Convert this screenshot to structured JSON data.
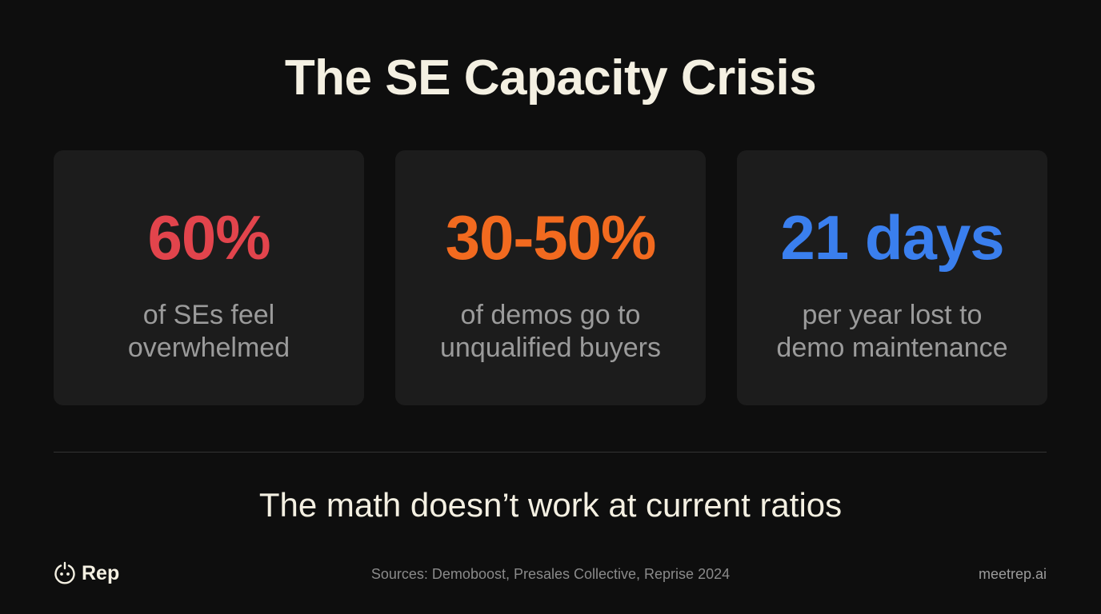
{
  "title": "The SE Capacity Crisis",
  "stats": [
    {
      "value": "60%",
      "color": "#e2444c",
      "lines": [
        "of SEs feel",
        "overwhelmed"
      ]
    },
    {
      "value": "30-50%",
      "color": "#f26a1f",
      "lines": [
        "of demos go to",
        "unqualified buyers"
      ]
    },
    {
      "value": "21 days",
      "color": "#3a7fee",
      "lines": [
        "per year lost to",
        "demo maintenance"
      ]
    }
  ],
  "conclusion": "The math doesn’t work at current ratios",
  "footer": {
    "brand": "Rep",
    "sources": "Sources: Demoboost, Presales Collective, Reprise 2024",
    "website": "meetrep.ai"
  }
}
